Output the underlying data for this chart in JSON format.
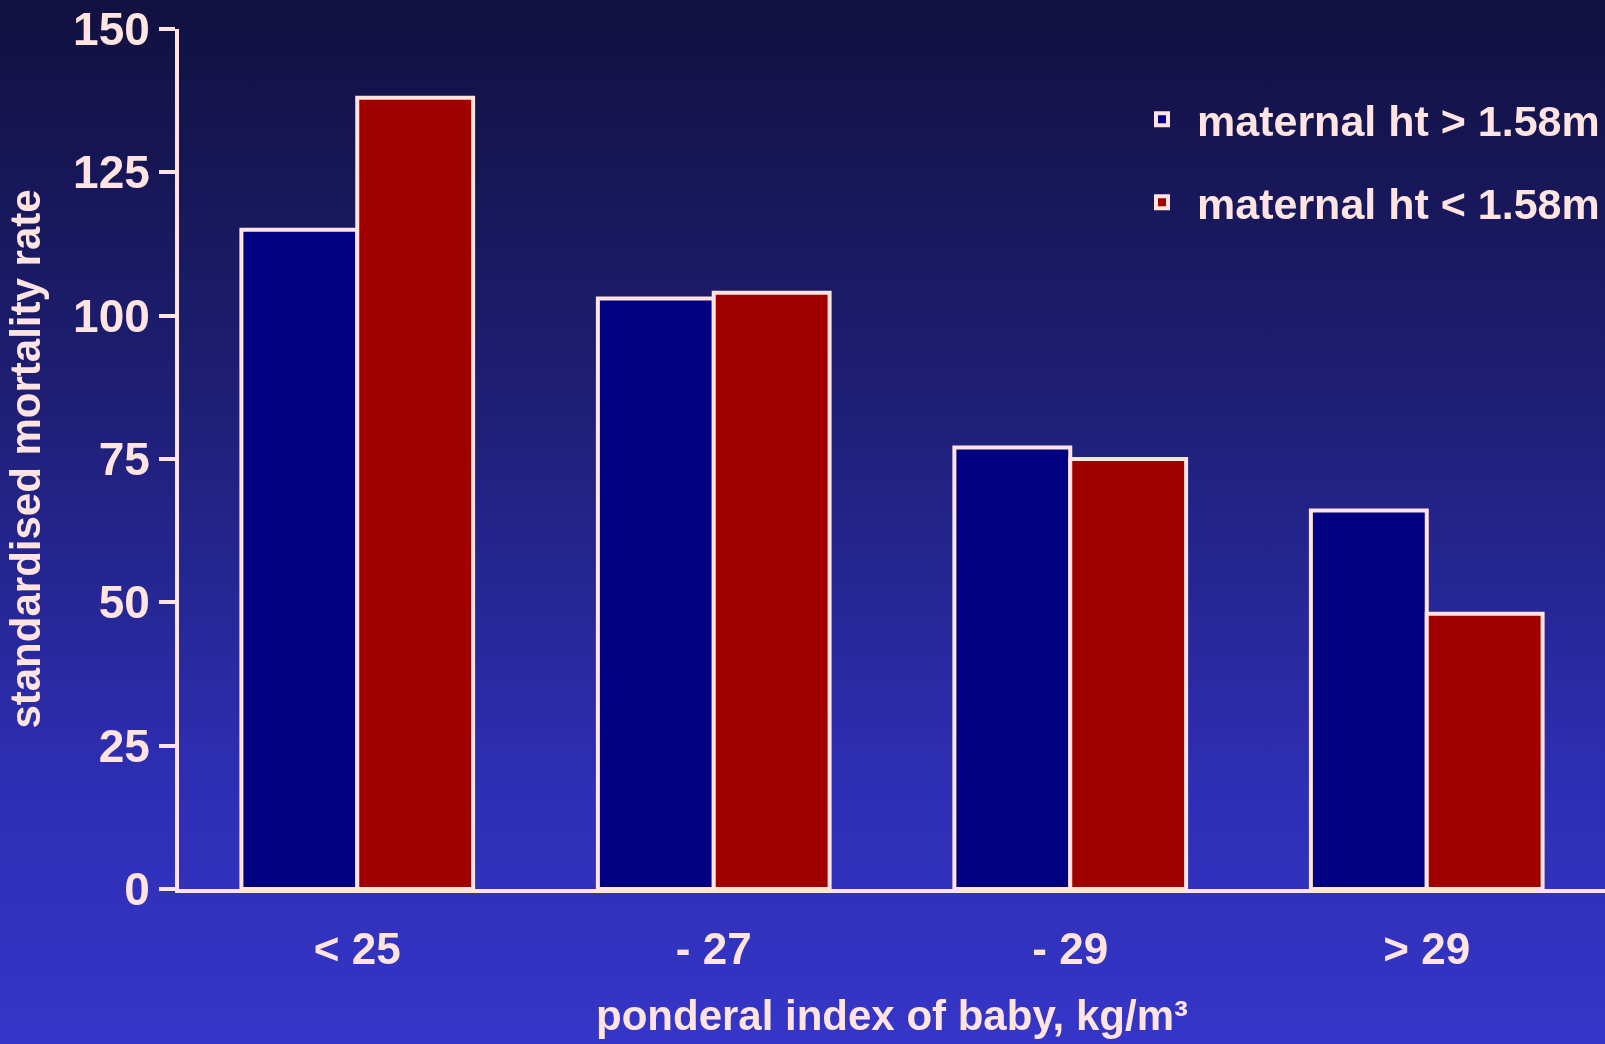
{
  "chart_data": {
    "type": "bar",
    "xlabel": "ponderal index of baby, kg/m³",
    "ylabel": "standardised mortality rate",
    "categories": [
      "< 25",
      "- 27",
      "- 29",
      "> 29"
    ],
    "series": [
      {
        "name": "maternal ht > 1.58m",
        "color": "#000080",
        "values": [
          115,
          103,
          77,
          66
        ]
      },
      {
        "name": "maternal ht < 1.58m",
        "color": "#a00000",
        "values": [
          138,
          104,
          75,
          48
        ]
      }
    ],
    "ylim": [
      0,
      150
    ],
    "yticks": [
      0,
      25,
      50,
      75,
      100,
      125,
      150
    ],
    "grid": false,
    "legend": "top right"
  }
}
